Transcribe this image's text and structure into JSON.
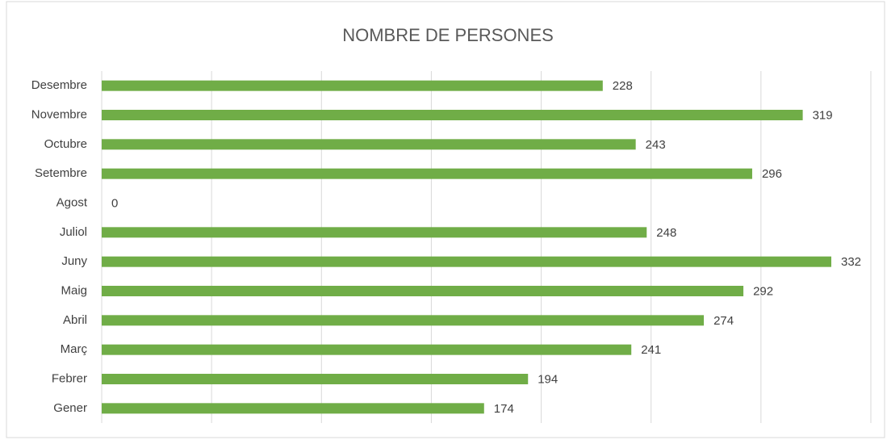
{
  "chart_data": {
    "type": "bar",
    "orientation": "horizontal",
    "title": "NOMBRE DE PERSONES",
    "categories": [
      "Gener",
      "Febrer",
      "Març",
      "Abril",
      "Maig",
      "Juny",
      "Juliol",
      "Agost",
      "Setembre",
      "Octubre",
      "Novembre",
      "Desembre"
    ],
    "values": [
      174,
      194,
      241,
      274,
      292,
      332,
      248,
      0,
      296,
      243,
      319,
      228
    ],
    "color": "#70ad47",
    "xlim": [
      0,
      350
    ],
    "xticks": [
      0,
      50,
      100,
      150,
      200,
      250,
      300,
      350
    ],
    "grid": true
  }
}
